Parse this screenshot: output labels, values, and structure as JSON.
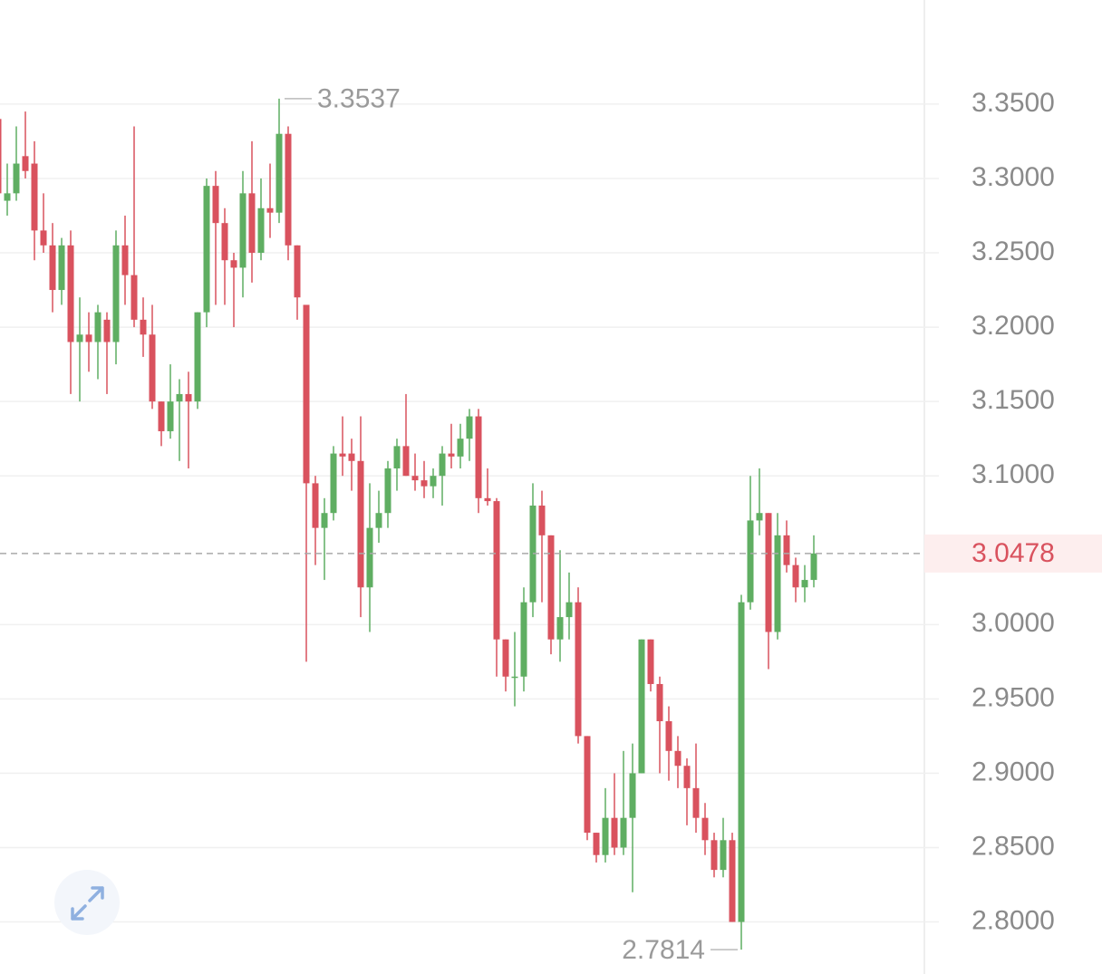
{
  "chart_data": {
    "type": "candlestick",
    "open": [
      3.34,
      3.285,
      3.29,
      3.315,
      3.31,
      3.265,
      3.255,
      3.225,
      3.255,
      3.19,
      3.195,
      3.19,
      3.205,
      3.19,
      3.255,
      3.235,
      3.205,
      3.195,
      3.15,
      3.13,
      3.15,
      3.155,
      3.15,
      3.21,
      3.295,
      3.27,
      3.245,
      3.24,
      3.29,
      3.25,
      3.28,
      3.277,
      3.33,
      3.255,
      3.215,
      3.095,
      3.065,
      3.075,
      3.115,
      3.115,
      3.11,
      3.025,
      3.065,
      3.075,
      3.105,
      3.12,
      3.1,
      3.097,
      3.093,
      3.1,
      3.115,
      3.113,
      3.125,
      3.14,
      3.085,
      3.083,
      2.99,
      2.965,
      2.965,
      3.015,
      3.08,
      3.06,
      2.99,
      3.005,
      3.015,
      2.925,
      2.86,
      2.845,
      2.87,
      2.85,
      2.87,
      2.9,
      2.99,
      2.96,
      2.935,
      2.915,
      2.905,
      2.89,
      2.87,
      2.855,
      2.835,
      2.855,
      2.8,
      3.015,
      3.07,
      3.075,
      2.995,
      3.06,
      3.04,
      3.025,
      3.03
    ],
    "high": [
      3.35,
      3.31,
      3.335,
      3.345,
      3.325,
      3.29,
      3.27,
      3.26,
      3.265,
      3.22,
      3.21,
      3.215,
      3.21,
      3.265,
      3.275,
      3.335,
      3.22,
      3.215,
      3.15,
      3.175,
      3.165,
      3.17,
      3.21,
      3.3,
      3.305,
      3.28,
      3.25,
      3.305,
      3.325,
      3.3,
      3.31,
      3.3537,
      3.335,
      3.255,
      3.215,
      3.1,
      3.085,
      3.12,
      3.14,
      3.125,
      3.14,
      3.095,
      3.09,
      3.11,
      3.125,
      3.155,
      3.115,
      3.11,
      3.105,
      3.12,
      3.135,
      3.135,
      3.145,
      3.145,
      3.105,
      3.085,
      2.99,
      2.995,
      3.025,
      3.095,
      3.09,
      3.06,
      3.05,
      3.035,
      3.025,
      2.925,
      2.86,
      2.89,
      2.9,
      2.915,
      2.92,
      2.99,
      2.99,
      2.965,
      2.945,
      2.925,
      2.91,
      2.92,
      2.88,
      2.86,
      2.87,
      2.86,
      3.02,
      3.1,
      3.105,
      3.075,
      3.075,
      3.07,
      3.045,
      3.04,
      3.06
    ],
    "low": [
      3.28,
      3.275,
      3.285,
      3.3,
      3.245,
      3.25,
      3.21,
      3.215,
      3.155,
      3.15,
      3.17,
      3.165,
      3.155,
      3.175,
      3.215,
      3.2,
      3.18,
      3.145,
      3.12,
      3.125,
      3.11,
      3.105,
      3.145,
      3.2,
      3.215,
      3.215,
      3.2,
      3.22,
      3.23,
      3.245,
      3.26,
      3.27,
      3.245,
      3.205,
      2.975,
      3.04,
      3.03,
      3.07,
      3.1,
      3.09,
      3.005,
      2.995,
      3.055,
      3.065,
      3.09,
      3.1,
      3.09,
      3.085,
      3.085,
      3.08,
      3.105,
      3.105,
      3.11,
      3.075,
      3.08,
      2.965,
      2.955,
      2.945,
      2.955,
      3.005,
      3.015,
      2.98,
      2.975,
      2.99,
      2.92,
      2.855,
      2.84,
      2.84,
      2.845,
      2.845,
      2.82,
      2.9,
      2.955,
      2.9,
      2.895,
      2.89,
      2.865,
      2.86,
      2.845,
      2.83,
      2.83,
      2.8,
      2.7814,
      3.01,
      3.06,
      2.97,
      2.99,
      3.035,
      3.015,
      3.015,
      3.025
    ],
    "close": [
      3.29,
      3.29,
      3.31,
      3.305,
      3.265,
      3.255,
      3.225,
      3.255,
      3.19,
      3.195,
      3.19,
      3.21,
      3.19,
      3.255,
      3.235,
      3.205,
      3.195,
      3.15,
      3.13,
      3.15,
      3.155,
      3.15,
      3.21,
      3.295,
      3.27,
      3.245,
      3.24,
      3.29,
      3.25,
      3.28,
      3.277,
      3.33,
      3.255,
      3.22,
      3.095,
      3.065,
      3.075,
      3.115,
      3.113,
      3.11,
      3.025,
      3.065,
      3.075,
      3.105,
      3.12,
      3.1,
      3.097,
      3.093,
      3.1,
      3.115,
      3.113,
      3.125,
      3.14,
      3.085,
      3.083,
      2.99,
      2.965,
      2.965,
      3.015,
      3.08,
      3.06,
      2.99,
      3.005,
      3.015,
      2.925,
      2.86,
      2.845,
      2.87,
      2.85,
      2.87,
      2.9,
      2.99,
      2.96,
      2.935,
      2.915,
      2.905,
      2.89,
      2.87,
      2.855,
      2.835,
      2.855,
      2.8,
      3.015,
      3.07,
      3.075,
      2.995,
      3.06,
      3.04,
      3.025,
      3.03,
      3.0478
    ],
    "up_color": "#5fae62",
    "down_color": "#d9525e",
    "ylim": [
      2.765,
      3.42
    ],
    "yticks": [
      {
        "value": 3.35,
        "label": "3.3500"
      },
      {
        "value": 3.3,
        "label": "3.3000"
      },
      {
        "value": 3.25,
        "label": "3.2500"
      },
      {
        "value": 3.2,
        "label": "3.2000"
      },
      {
        "value": 3.15,
        "label": "3.1500"
      },
      {
        "value": 3.1,
        "label": "3.1000"
      },
      {
        "value": 3.0,
        "label": "3.0000"
      },
      {
        "value": 2.95,
        "label": "2.9500"
      },
      {
        "value": 2.9,
        "label": "2.9000"
      },
      {
        "value": 2.85,
        "label": "2.8500"
      },
      {
        "value": 2.8,
        "label": "2.8000"
      }
    ],
    "grid": true,
    "last_price": 3.0478,
    "max_label": 3.3537,
    "min_label": 2.7814
  }
}
